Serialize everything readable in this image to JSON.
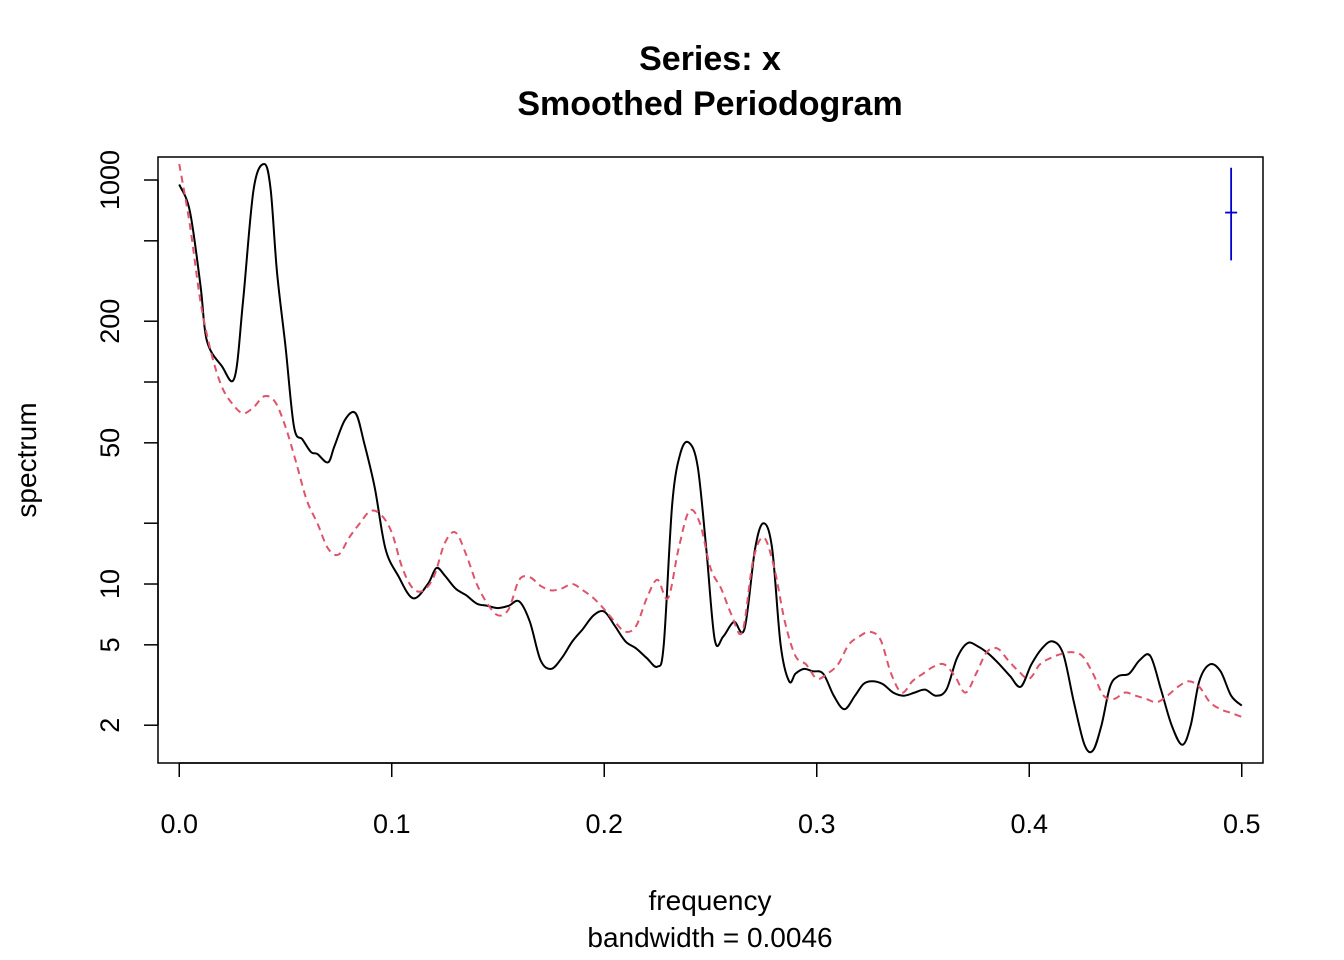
{
  "chart_data": {
    "type": "line",
    "title": "Series: x",
    "subtitle": "Smoothed Periodogram",
    "xlabel": "frequency",
    "xlabel2": "bandwidth = 0.0046",
    "ylabel": "spectrum",
    "xlim": [
      -0.01,
      0.51
    ],
    "ylim": [
      1.3,
      1300
    ],
    "y_log_scale": true,
    "grid": false,
    "x_ticks": [
      0.0,
      0.1,
      0.2,
      0.3,
      0.4,
      0.5
    ],
    "x_tick_labels": [
      "0.0",
      "0.1",
      "0.2",
      "0.3",
      "0.4",
      "0.5"
    ],
    "y_ticks": [
      2,
      5,
      10,
      20,
      50,
      100,
      200,
      500,
      1000
    ],
    "y_tick_labels": [
      "2",
      "5",
      "10",
      "",
      "50",
      "",
      "200",
      "",
      "1000"
    ],
    "series": [
      {
        "color": "#000000",
        "dash": "solid",
        "x": [
          0.0,
          0.005,
          0.01,
          0.013,
          0.02,
          0.026,
          0.03,
          0.035,
          0.04,
          0.043,
          0.046,
          0.05,
          0.054,
          0.058,
          0.062,
          0.065,
          0.07,
          0.073,
          0.078,
          0.083,
          0.087,
          0.092,
          0.097,
          0.103,
          0.11,
          0.117,
          0.121,
          0.125,
          0.13,
          0.135,
          0.14,
          0.145,
          0.15,
          0.155,
          0.16,
          0.165,
          0.17,
          0.175,
          0.18,
          0.185,
          0.19,
          0.195,
          0.2,
          0.205,
          0.21,
          0.215,
          0.22,
          0.225,
          0.228,
          0.232,
          0.236,
          0.24,
          0.244,
          0.248,
          0.252,
          0.256,
          0.261,
          0.266,
          0.271,
          0.275,
          0.279,
          0.283,
          0.287,
          0.29,
          0.294,
          0.298,
          0.303,
          0.308,
          0.313,
          0.318,
          0.322,
          0.326,
          0.331,
          0.336,
          0.341,
          0.346,
          0.351,
          0.356,
          0.361,
          0.366,
          0.371,
          0.376,
          0.381,
          0.386,
          0.391,
          0.396,
          0.401,
          0.406,
          0.411,
          0.416,
          0.421,
          0.426,
          0.43,
          0.434,
          0.438,
          0.442,
          0.447,
          0.452,
          0.457,
          0.462,
          0.467,
          0.472,
          0.476,
          0.48,
          0.485,
          0.49,
          0.495,
          0.5
        ],
        "y": [
          950,
          700,
          300,
          160,
          120,
          105,
          250,
          900,
          1200,
          900,
          350,
          150,
          60,
          52,
          45,
          44,
          40,
          48,
          65,
          70,
          50,
          30,
          15,
          11,
          8.5,
          10,
          12,
          11,
          9.5,
          8.8,
          8,
          7.8,
          7.6,
          7.8,
          8.2,
          6.5,
          4.2,
          3.8,
          4.3,
          5.2,
          6,
          7,
          7.3,
          6.2,
          5.2,
          4.8,
          4.3,
          3.9,
          5,
          25,
          45,
          50,
          38,
          15,
          5.3,
          5.5,
          6.5,
          6,
          15,
          20,
          15,
          5,
          3.3,
          3.6,
          3.8,
          3.7,
          3.6,
          2.8,
          2.4,
          2.8,
          3.2,
          3.3,
          3.2,
          2.9,
          2.8,
          2.9,
          3,
          2.8,
          3,
          4.3,
          5.1,
          4.9,
          4.5,
          4,
          3.5,
          3.1,
          4,
          4.8,
          5.2,
          4.5,
          2.6,
          1.6,
          1.5,
          2,
          3.1,
          3.5,
          3.6,
          4.2,
          4.4,
          3,
          2,
          1.6,
          2,
          3.3,
          4,
          3.7,
          2.8,
          2.5
        ]
      },
      {
        "color": "#DF536B",
        "dash": "dashed",
        "x": [
          0.0,
          0.005,
          0.01,
          0.015,
          0.02,
          0.025,
          0.03,
          0.035,
          0.04,
          0.045,
          0.05,
          0.055,
          0.06,
          0.065,
          0.07,
          0.075,
          0.08,
          0.085,
          0.09,
          0.095,
          0.1,
          0.105,
          0.11,
          0.115,
          0.12,
          0.125,
          0.13,
          0.135,
          0.14,
          0.145,
          0.15,
          0.155,
          0.16,
          0.165,
          0.17,
          0.175,
          0.18,
          0.185,
          0.19,
          0.195,
          0.2,
          0.205,
          0.21,
          0.215,
          0.22,
          0.225,
          0.23,
          0.235,
          0.24,
          0.245,
          0.25,
          0.255,
          0.26,
          0.265,
          0.27,
          0.275,
          0.28,
          0.285,
          0.29,
          0.295,
          0.3,
          0.305,
          0.31,
          0.315,
          0.32,
          0.325,
          0.33,
          0.335,
          0.34,
          0.345,
          0.35,
          0.355,
          0.36,
          0.365,
          0.37,
          0.375,
          0.38,
          0.385,
          0.39,
          0.395,
          0.4,
          0.405,
          0.41,
          0.415,
          0.42,
          0.425,
          0.43,
          0.435,
          0.44,
          0.445,
          0.45,
          0.455,
          0.46,
          0.465,
          0.47,
          0.475,
          0.48,
          0.485,
          0.49,
          0.495,
          0.5
        ],
        "y": [
          1200,
          600,
          250,
          140,
          95,
          78,
          70,
          75,
          85,
          80,
          60,
          40,
          26,
          20,
          15,
          14,
          17,
          20,
          23,
          22,
          18,
          12,
          9.5,
          9.3,
          11,
          16,
          18,
          14,
          10,
          8,
          7,
          7.5,
          10.5,
          10.8,
          9.8,
          9.3,
          9.5,
          10,
          9.3,
          8.5,
          7.5,
          6.5,
          5.8,
          6.2,
          8.5,
          10.5,
          8.5,
          15,
          23,
          20,
          12,
          9.5,
          7,
          5.8,
          13,
          17,
          12,
          6.5,
          4.4,
          4,
          3.4,
          3.6,
          4,
          5,
          5.5,
          5.8,
          5.3,
          3.6,
          2.9,
          3.3,
          3.6,
          3.9,
          4,
          3.5,
          2.9,
          3.6,
          4.6,
          4.8,
          4.2,
          3.7,
          3.4,
          4,
          4.3,
          4.5,
          4.6,
          4.4,
          3.6,
          2.8,
          2.7,
          2.9,
          2.8,
          2.7,
          2.6,
          2.8,
          3.1,
          3.3,
          3.1,
          2.6,
          2.4,
          2.3,
          2.2
        ]
      }
    ],
    "ci_bar": {
      "x": 0.495,
      "center": 690,
      "lower": 400,
      "upper": 1150,
      "color": "#0000CD"
    }
  }
}
